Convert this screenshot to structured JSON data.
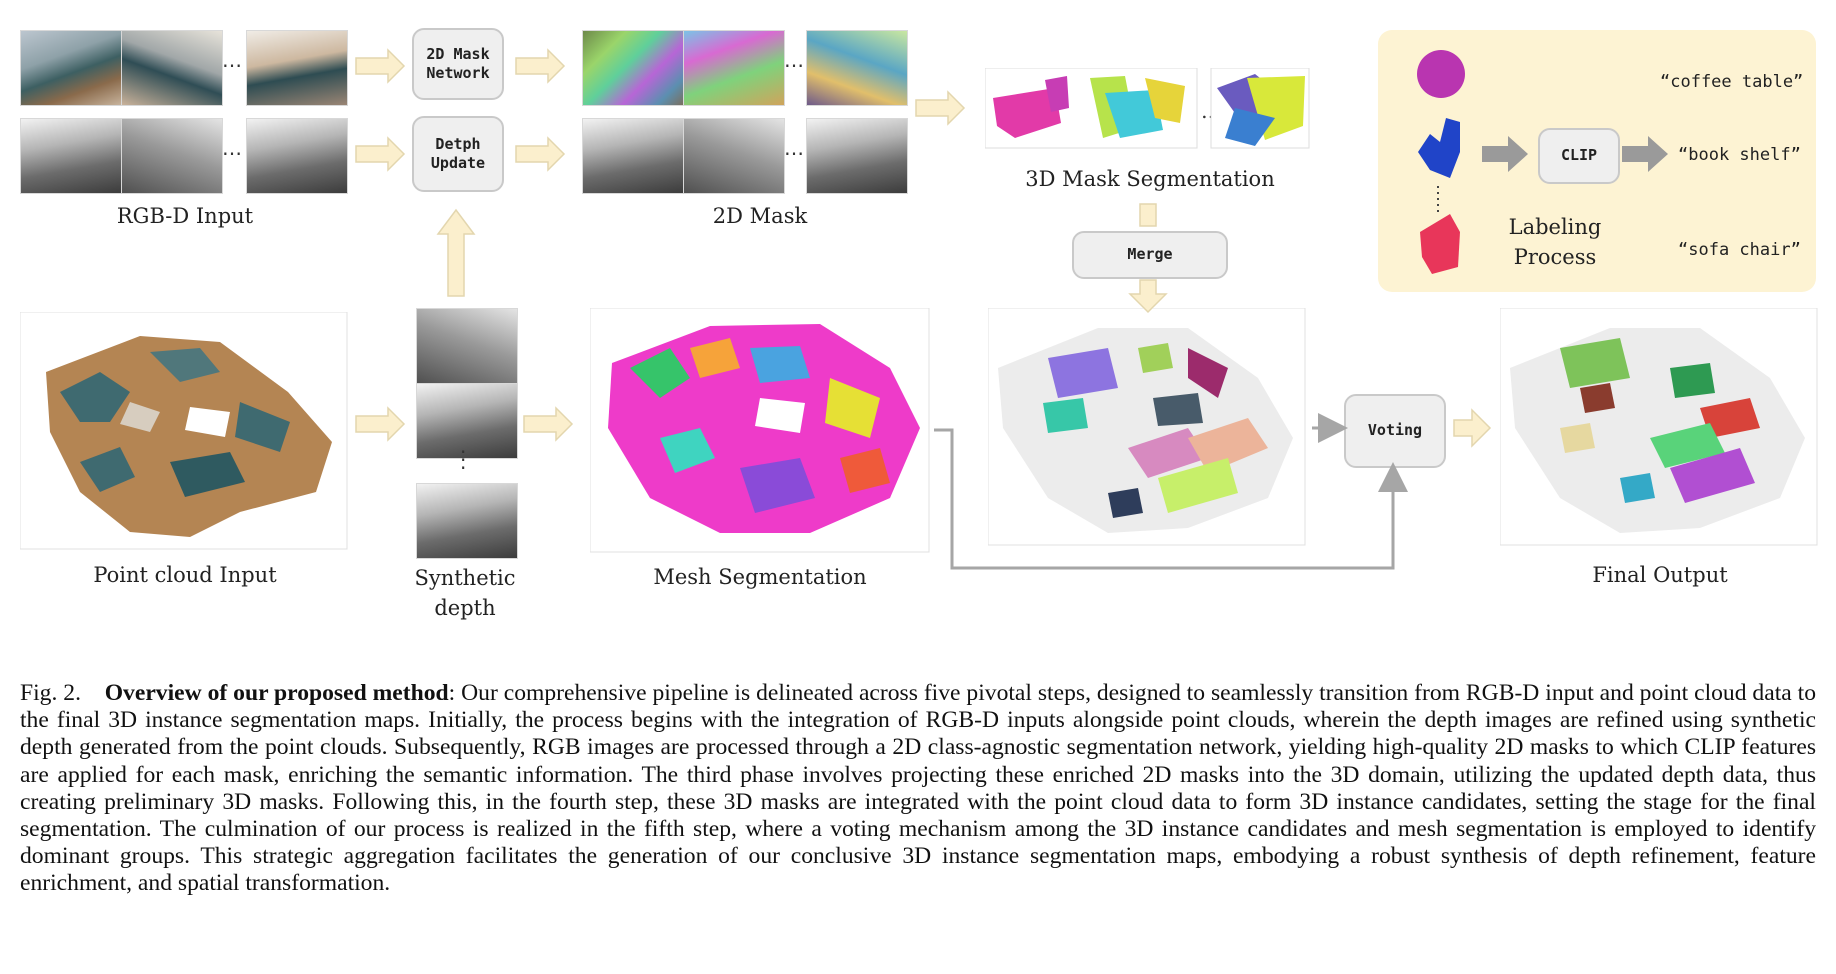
{
  "figure": {
    "boxes": {
      "mask_network": "2D Mask\nNetwork",
      "depth_update": "Detph\nUpdate",
      "merge": "Merge",
      "clip": "CLIP",
      "voting": "Voting"
    },
    "labels": {
      "rgbd_input": "RGB-D Input",
      "mask_2d": "2D Mask",
      "mask_3d_seg": "3D Mask Segmentation",
      "point_cloud_input": "Point cloud Input",
      "synthetic_depth": "Synthetic\ndepth",
      "mesh_segmentation": "Mesh Segmentation",
      "final_output": "Final Output",
      "labeling_process": "Labeling\nProcess"
    },
    "clip_labels": [
      "“coffee table”",
      "“book shelf”",
      "“sofa chair”"
    ],
    "colors": {
      "arrow_fill": "#fbefcd",
      "arrow_stroke": "#e3d6ae",
      "box_bg": "#efefef",
      "labeling_panel_bg": "#fdf3d3",
      "connector_gray": "#a6a6a6"
    }
  },
  "caption": {
    "fig_label": "Fig. 2.",
    "title": "Overview of our proposed method",
    "body": ": Our comprehensive pipeline is delineated across five pivotal steps, designed to seamlessly transition from RGB-D input and point cloud data to the final 3D instance segmentation maps. Initially, the process begins with the integration of RGB-D inputs alongside point clouds, wherein the depth images are refined using synthetic depth generated from the point clouds. Subsequently, RGB images are processed through a 2D class-agnostic segmentation network, yielding high-quality 2D masks to which CLIP features are applied for each mask, enriching the semantic information. The third phase involves projecting these enriched 2D masks into the 3D domain, utilizing the updated depth data, thus creating preliminary 3D masks. Following this, in the fourth step, these 3D masks are integrated with the point cloud data to form 3D instance candidates, setting the stage for the final segmentation. The culmination of our process is realized in the fifth step, where a voting mechanism among the 3D instance candidates and mesh segmentation is employed to identify dominant groups. This strategic aggregation facilitates the generation of our conclusive 3D instance segmentation maps, embodying a robust synthesis of depth refinement, feature enrichment, and spatial transformation."
  }
}
